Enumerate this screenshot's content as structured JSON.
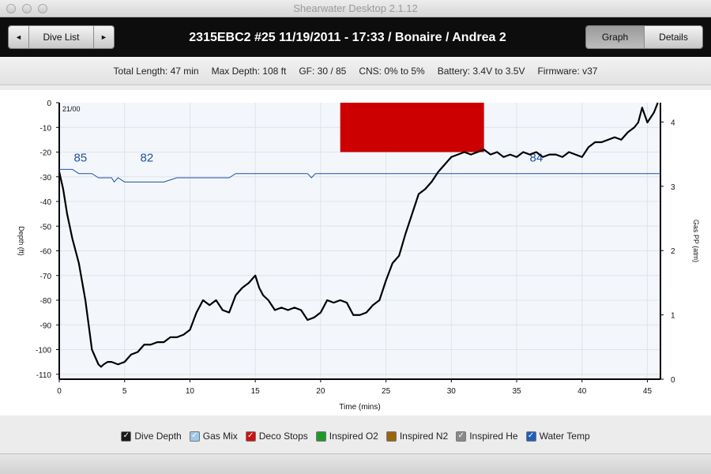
{
  "window": {
    "title": "Shearwater Desktop 2.1.12"
  },
  "header": {
    "prev_icon": "◄",
    "dive_list_label": "Dive List",
    "next_icon": "►",
    "dive_title": "2315EBC2 #25 11/19/2011 - 17:33  / Bonaire / Andrea 2",
    "graph_tab": "Graph",
    "details_tab": "Details"
  },
  "stats": {
    "total_length": "Total Length: 47 min",
    "max_depth": "Max Depth: 108 ft",
    "gf": "GF: 30 / 85",
    "cns": "CNS: 0% to 5%",
    "battery": "Battery: 3.4V to 3.5V",
    "firmware": "Firmware: v37"
  },
  "legend": [
    {
      "label": "Dive Depth",
      "color": "#1a1a1a",
      "checked": true
    },
    {
      "label": "Gas Mix",
      "color": "#9fc8ea",
      "checked": true
    },
    {
      "label": "Deco Stops",
      "color": "#cc1111",
      "checked": true
    },
    {
      "label": "Inspired O2",
      "color": "#1f9a2a",
      "checked": false
    },
    {
      "label": "Inspired N2",
      "color": "#9a6410",
      "checked": false
    },
    {
      "label": "Inspired He",
      "color": "#8a8a8a",
      "checked": true
    },
    {
      "label": "Water Temp",
      "color": "#1f5fb8",
      "checked": true
    }
  ],
  "chart_data": {
    "type": "line",
    "xlabel": "Time (mins)",
    "ylabel": "Depth (ft)",
    "y2label": "Gas PP (atm)",
    "gas_mix_label": "21/00",
    "xlim": [
      0,
      46
    ],
    "ylim": [
      -112,
      0
    ],
    "y2lim": [
      0,
      4.3
    ],
    "x_ticks": [
      0,
      5,
      10,
      15,
      20,
      25,
      30,
      35,
      40,
      45
    ],
    "y_ticks": [
      0,
      -10,
      -20,
      -30,
      -40,
      -50,
      -60,
      -70,
      -80,
      -90,
      -100,
      -110
    ],
    "y2_ticks": [
      0,
      1,
      2,
      3,
      4
    ],
    "colors": {
      "depth": "#000000",
      "temp": "#1f4fa8",
      "deco": "#cc0000",
      "plot_bg": "#f3f7fb",
      "grid": "#dfe4ea"
    },
    "deco_stop": {
      "x_start": 21.5,
      "x_end": 32.5,
      "depth_top": 0,
      "depth_bottom": -20
    },
    "depth": {
      "x": [
        0,
        0.3,
        0.6,
        1,
        1.5,
        2,
        2.5,
        3,
        3.2,
        3.4,
        3.7,
        4,
        4.5,
        5,
        5.5,
        6,
        6.5,
        7,
        7.5,
        8,
        8.5,
        9,
        9.5,
        10,
        10.5,
        11,
        11.5,
        12,
        12.5,
        13,
        13.5,
        14,
        14.5,
        15,
        15.3,
        15.6,
        16,
        16.5,
        17,
        17.5,
        18,
        18.5,
        19,
        19.5,
        20,
        20.5,
        21,
        21.5,
        22,
        22.5,
        23,
        23.5,
        24,
        24.5,
        25,
        25.5,
        26,
        26.5,
        27,
        27.5,
        28,
        28.5,
        29,
        29.5,
        30,
        30.5,
        31,
        31.5,
        32,
        32.5,
        33,
        33.5,
        34,
        34.5,
        35,
        35.5,
        36,
        36.5,
        37,
        37.5,
        38,
        38.5,
        39,
        39.5,
        40,
        40.5,
        41,
        41.5,
        42,
        42.5,
        43,
        43.5,
        44,
        44.3,
        44.6,
        45,
        45.5,
        45.8
      ],
      "y": [
        -28,
        -35,
        -45,
        -55,
        -65,
        -80,
        -100,
        -106,
        -107,
        -106,
        -105,
        -105,
        -106,
        -105,
        -102,
        -101,
        -98,
        -98,
        -97,
        -97,
        -95,
        -95,
        -94,
        -92,
        -85,
        -80,
        -82,
        -80,
        -84,
        -85,
        -78,
        -75,
        -73,
        -70,
        -75,
        -78,
        -80,
        -84,
        -83,
        -84,
        -83,
        -84,
        -88,
        -87,
        -85,
        -80,
        -81,
        -80,
        -81,
        -86,
        -86,
        -85,
        -82,
        -80,
        -72,
        -65,
        -62,
        -53,
        -45,
        -37,
        -35,
        -32,
        -28,
        -25,
        -22,
        -21,
        -20,
        -21,
        -20,
        -19,
        -21,
        -20,
        -22,
        -21,
        -22,
        -20,
        -21,
        -20,
        -22,
        -21,
        -21,
        -22,
        -20,
        -21,
        -22,
        -18,
        -16,
        -16,
        -15,
        -14,
        -15,
        -12,
        -10,
        -8,
        -2,
        -8,
        -4,
        0
      ]
    },
    "water_temp": {
      "x": [
        0,
        1,
        1.5,
        2,
        2.5,
        3,
        3.5,
        4,
        4.2,
        4.5,
        5,
        6,
        7,
        8,
        9,
        10,
        11,
        12,
        13,
        13.5,
        14,
        15,
        16,
        17,
        18,
        19,
        19.3,
        19.6,
        20,
        22,
        24,
        26,
        28,
        30,
        32,
        34,
        36,
        38,
        40,
        42,
        44,
        46
      ],
      "y": [
        85,
        85,
        84,
        84,
        84,
        83,
        83,
        83,
        82,
        83,
        82,
        82,
        82,
        82,
        83,
        83,
        83,
        83,
        83,
        84,
        84,
        84,
        84,
        84,
        84,
        84,
        83,
        84,
        84,
        84,
        84,
        84,
        84,
        84,
        84,
        84,
        84,
        84,
        84,
        84,
        84,
        84
      ],
      "labels": [
        {
          "x": 1,
          "value": "85"
        },
        {
          "x": 6.7,
          "value": "82"
        },
        {
          "x": 36.5,
          "value": "84"
        }
      ]
    }
  }
}
